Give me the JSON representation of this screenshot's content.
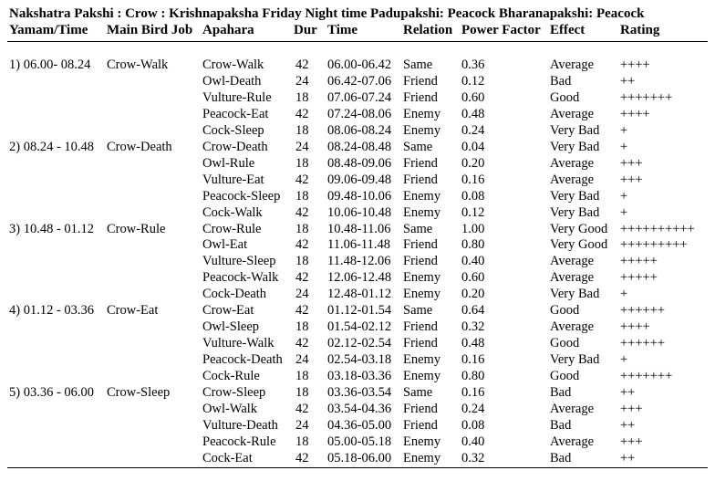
{
  "title": "Nakshatra Pakshi : Crow : Krishnapaksha  Friday  Night time Padupakshi: Peacock Bharanapakshi: Peacock",
  "headers": {
    "yamam": "Yamam/Time",
    "bird": "Main Bird Job",
    "apahara": "Apahara",
    "dur": "Dur",
    "time": "Time",
    "relation": "Relation",
    "power": "Power Factor",
    "effect": "Effect",
    "rating": "Rating"
  },
  "rows": [
    {
      "yamam": "1) 06.00- 08.24",
      "bird": "Crow-Walk",
      "apahara": "Crow-Walk",
      "dur": "42",
      "time": "06.00-06.42",
      "relation": "Same",
      "power": "0.36",
      "effect": "Average",
      "rating": "++++"
    },
    {
      "yamam": "",
      "bird": "",
      "apahara": "Owl-Death",
      "dur": "24",
      "time": "06.42-07.06",
      "relation": "Friend",
      "power": "0.12",
      "effect": "Bad",
      "rating": "++"
    },
    {
      "yamam": "",
      "bird": "",
      "apahara": "Vulture-Rule",
      "dur": "18",
      "time": "07.06-07.24",
      "relation": "Friend",
      "power": "0.60",
      "effect": "Good",
      "rating": "+++++++"
    },
    {
      "yamam": "",
      "bird": "",
      "apahara": "Peacock-Eat",
      "dur": "42",
      "time": "07.24-08.06",
      "relation": "Enemy",
      "power": "0.48",
      "effect": "Average",
      "rating": "++++"
    },
    {
      "yamam": "",
      "bird": "",
      "apahara": "Cock-Sleep",
      "dur": "18",
      "time": "08.06-08.24",
      "relation": "Enemy",
      "power": "0.24",
      "effect": "Very Bad",
      "rating": "+"
    },
    {
      "yamam": "2) 08.24 - 10.48",
      "bird": "Crow-Death",
      "apahara": "Crow-Death",
      "dur": "24",
      "time": "08.24-08.48",
      "relation": "Same",
      "power": "0.04",
      "effect": "Very Bad",
      "rating": "+"
    },
    {
      "yamam": "",
      "bird": "",
      "apahara": "Owl-Rule",
      "dur": "18",
      "time": "08.48-09.06",
      "relation": "Friend",
      "power": "0.20",
      "effect": "Average",
      "rating": "+++"
    },
    {
      "yamam": "",
      "bird": "",
      "apahara": "Vulture-Eat",
      "dur": "42",
      "time": "09.06-09.48",
      "relation": "Friend",
      "power": "0.16",
      "effect": "Average",
      "rating": "+++"
    },
    {
      "yamam": "",
      "bird": "",
      "apahara": "Peacock-Sleep",
      "dur": "18",
      "time": "09.48-10.06",
      "relation": "Enemy",
      "power": "0.08",
      "effect": "Very Bad",
      "rating": "+"
    },
    {
      "yamam": "",
      "bird": "",
      "apahara": "Cock-Walk",
      "dur": "42",
      "time": "10.06-10.48",
      "relation": "Enemy",
      "power": "0.12",
      "effect": "Very Bad",
      "rating": "+"
    },
    {
      "yamam": "3) 10.48 - 01.12",
      "bird": "Crow-Rule",
      "apahara": "Crow-Rule",
      "dur": "18",
      "time": "10.48-11.06",
      "relation": "Same",
      "power": "1.00",
      "effect": "Very Good",
      "rating": "++++++++++"
    },
    {
      "yamam": "",
      "bird": "",
      "apahara": "Owl-Eat",
      "dur": "42",
      "time": "11.06-11.48",
      "relation": "Friend",
      "power": "0.80",
      "effect": "Very Good",
      "rating": "+++++++++"
    },
    {
      "yamam": "",
      "bird": "",
      "apahara": "Vulture-Sleep",
      "dur": "18",
      "time": "11.48-12.06",
      "relation": "Friend",
      "power": "0.40",
      "effect": "Average",
      "rating": "+++++"
    },
    {
      "yamam": "",
      "bird": "",
      "apahara": "Peacock-Walk",
      "dur": "42",
      "time": "12.06-12.48",
      "relation": "Enemy",
      "power": "0.60",
      "effect": "Average",
      "rating": "+++++"
    },
    {
      "yamam": "",
      "bird": "",
      "apahara": "Cock-Death",
      "dur": "24",
      "time": "12.48-01.12",
      "relation": "Enemy",
      "power": "0.20",
      "effect": "Very Bad",
      "rating": "+"
    },
    {
      "yamam": "4) 01.12 - 03.36",
      "bird": "Crow-Eat",
      "apahara": "Crow-Eat",
      "dur": "42",
      "time": "01.12-01.54",
      "relation": "Same",
      "power": "0.64",
      "effect": "Good",
      "rating": "++++++"
    },
    {
      "yamam": "",
      "bird": "",
      "apahara": "Owl-Sleep",
      "dur": "18",
      "time": "01.54-02.12",
      "relation": "Friend",
      "power": "0.32",
      "effect": "Average",
      "rating": "++++"
    },
    {
      "yamam": "",
      "bird": "",
      "apahara": "Vulture-Walk",
      "dur": "42",
      "time": "02.12-02.54",
      "relation": "Friend",
      "power": "0.48",
      "effect": "Good",
      "rating": "++++++"
    },
    {
      "yamam": "",
      "bird": "",
      "apahara": "Peacock-Death",
      "dur": "24",
      "time": "02.54-03.18",
      "relation": "Enemy",
      "power": "0.16",
      "effect": "Very Bad",
      "rating": "+"
    },
    {
      "yamam": "",
      "bird": "",
      "apahara": "Cock-Rule",
      "dur": "18",
      "time": "03.18-03.36",
      "relation": "Enemy",
      "power": "0.80",
      "effect": "Good",
      "rating": "+++++++"
    },
    {
      "yamam": "5) 03.36 - 06.00",
      "bird": "Crow-Sleep",
      "apahara": "Crow-Sleep",
      "dur": "18",
      "time": "03.36-03.54",
      "relation": "Same",
      "power": "0.16",
      "effect": "Bad",
      "rating": "++"
    },
    {
      "yamam": "",
      "bird": "",
      "apahara": "Owl-Walk",
      "dur": "42",
      "time": "03.54-04.36",
      "relation": "Friend",
      "power": "0.24",
      "effect": "Average",
      "rating": "+++"
    },
    {
      "yamam": "",
      "bird": "",
      "apahara": "Vulture-Death",
      "dur": "24",
      "time": "04.36-05.00",
      "relation": "Friend",
      "power": "0.08",
      "effect": "Bad",
      "rating": "++"
    },
    {
      "yamam": "",
      "bird": "",
      "apahara": "Peacock-Rule",
      "dur": "18",
      "time": "05.00-05.18",
      "relation": "Enemy",
      "power": "0.40",
      "effect": "Average",
      "rating": "+++"
    },
    {
      "yamam": "",
      "bird": "",
      "apahara": "Cock-Eat",
      "dur": "42",
      "time": "05.18-06.00",
      "relation": "Enemy",
      "power": "0.32",
      "effect": "Bad",
      "rating": "++"
    }
  ]
}
